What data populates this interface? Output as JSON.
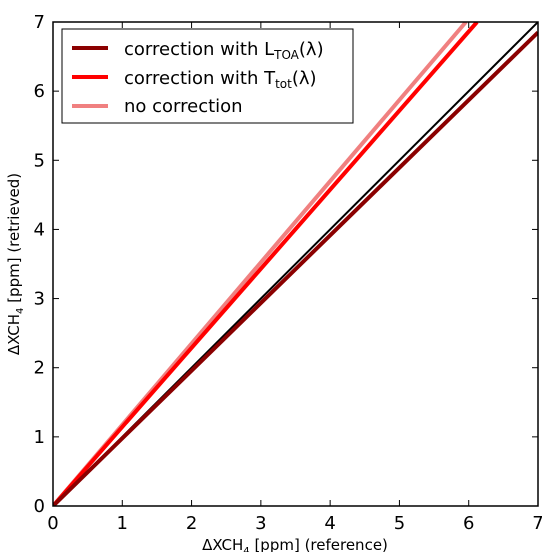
{
  "chart_data": {
    "type": "line",
    "xlabel": {
      "pre": "ΔXCH",
      "sub": "4",
      "post": " [ppm] (reference)"
    },
    "ylabel": {
      "pre": "ΔXCH",
      "sub": "4",
      "post": " [ppm] (retrieved)"
    },
    "xlim": [
      0,
      7
    ],
    "ylim": [
      0,
      7
    ],
    "xticks": [
      "0",
      "1",
      "2",
      "3",
      "4",
      "5",
      "6",
      "7"
    ],
    "yticks": [
      "0",
      "1",
      "2",
      "3",
      "4",
      "5",
      "6",
      "7"
    ],
    "grid": false,
    "legend_position": "top-left",
    "reference_line": {
      "x": [
        0,
        7
      ],
      "y": [
        0,
        7
      ],
      "color": "#000000"
    },
    "series": [
      {
        "legend": {
          "pre": "correction with L",
          "sub": "TOA",
          "post": "(λ)"
        },
        "color": "#8b0000",
        "x": [
          0,
          7
        ],
        "y": [
          0,
          6.85
        ]
      },
      {
        "legend": {
          "pre": "correction with T",
          "sub": "tot",
          "post": "(λ)"
        },
        "color": "#ff0000",
        "x": [
          0,
          6.12
        ],
        "y": [
          0,
          7
        ]
      },
      {
        "legend": {
          "pre": "no correction",
          "sub": "",
          "post": ""
        },
        "color": "#f08080",
        "x": [
          0,
          5.96
        ],
        "y": [
          0,
          7
        ]
      }
    ]
  }
}
